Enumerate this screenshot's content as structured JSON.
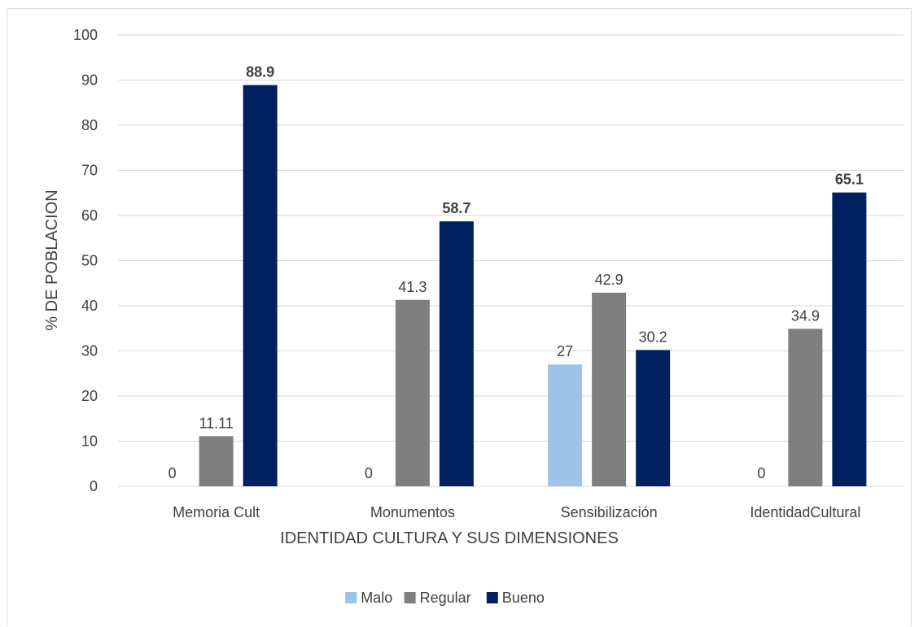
{
  "chart_data": {
    "type": "bar",
    "title": "",
    "xlabel": "IDENTIDAD CULTURA Y SUS DIMENSIONES",
    "ylabel": "% DE POBLACION",
    "ylim": [
      0,
      100
    ],
    "yticks": [
      0,
      10,
      20,
      30,
      40,
      50,
      60,
      70,
      80,
      90,
      100
    ],
    "grid": true,
    "legend_position": "bottom",
    "categories": [
      "Memoria Cult",
      "Monumentos",
      "Sensibilización",
      "IdentidadCultural"
    ],
    "series": [
      {
        "name": "Malo",
        "color": "#9dc3e6",
        "values": [
          0,
          0,
          27,
          0
        ],
        "labels": [
          "0",
          "0",
          "27",
          "0"
        ],
        "labels_bold": false
      },
      {
        "name": "Regular",
        "color": "#7f7f7f",
        "values": [
          11.11,
          41.3,
          42.9,
          34.9
        ],
        "labels": [
          "11.11",
          "41.3",
          "42.9",
          "34.9"
        ],
        "labels_bold": false
      },
      {
        "name": "Bueno",
        "color": "#002060",
        "values": [
          88.9,
          58.7,
          30.2,
          65.1
        ],
        "labels": [
          "88.9",
          "58.7",
          "30.2",
          "65.1"
        ],
        "bold_labels": [
          true,
          true,
          false,
          true
        ]
      }
    ]
  }
}
